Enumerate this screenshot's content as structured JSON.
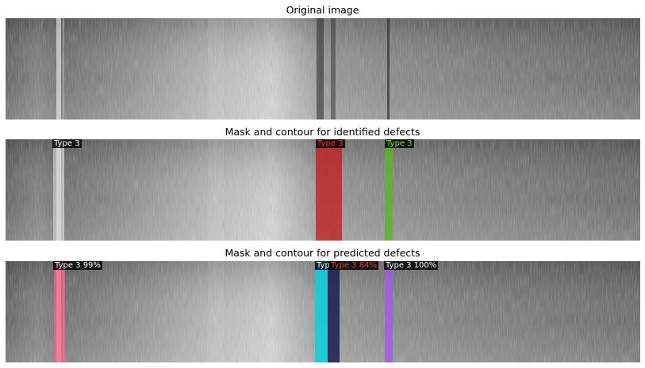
{
  "panels": [
    {
      "title": "Original image",
      "overlays": []
    },
    {
      "title": "Mask and contour for identified defects",
      "overlays": [
        {
          "label": "Type 3",
          "label_color": "#ffffff",
          "mask_color": "#dcdcdc"
        },
        {
          "label": "Type 3",
          "label_color": "#e03a3a",
          "mask_color": "#c21a1a"
        },
        {
          "label": "Type 3",
          "label_color": "#7fe03a",
          "mask_color": "#58b81c"
        }
      ]
    },
    {
      "title": "Mask and contour for predicted defects",
      "overlays": [
        {
          "label": "Type 3 99%",
          "label_color": "#ffffff",
          "mask_color": "#ff5c8a"
        },
        {
          "label": "Typ",
          "label_color": "#ffffff",
          "mask_color": "#00d2e6"
        },
        {
          "label": "Type 3 84%",
          "label_color": "#e03a3a",
          "mask_color": "#1c1c50"
        },
        {
          "label": "Type 3 100%",
          "label_color": "#ffffff",
          "mask_color": "#a05ae6"
        }
      ]
    }
  ]
}
